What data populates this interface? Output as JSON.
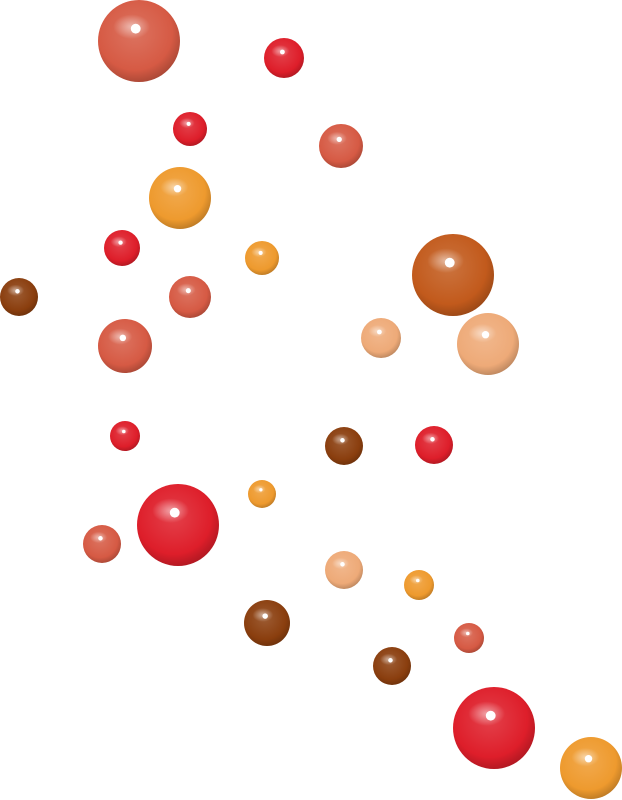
{
  "scene": {
    "background": "#ffffff",
    "palette": {
      "red": "#de1e2a",
      "salmon": "#d65a44",
      "orange": "#ee9a2e",
      "brown": "#8a3e0e",
      "rust": "#c25a1c",
      "peach": "#eeaa78"
    }
  }
}
